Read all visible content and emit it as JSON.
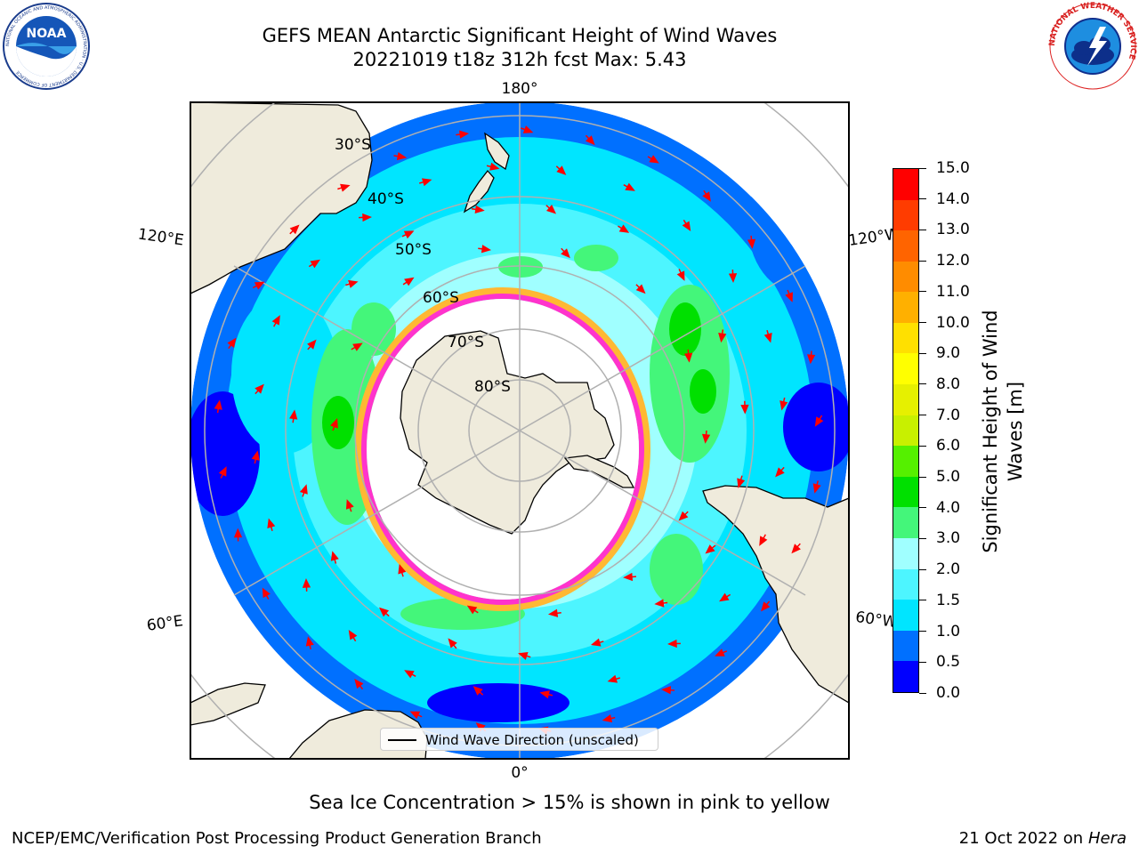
{
  "header": {
    "title_line1": "GEFS MEAN Antarctic Significant Height of Wind Waves",
    "title_line2": "20221019 t18z 312h fcst   Max: 5.43"
  },
  "logos": {
    "noaa_text": "NOAA",
    "noaa_ring_text": "NATIONAL OCEANIC AND ATMOSPHERIC ADMINISTRATION · U.S. DEPARTMENT OF COMMERCE",
    "nws_ring_text": "NATIONAL WEATHER SERVICE"
  },
  "map": {
    "longitude_labels": {
      "top": "180°",
      "bottom": "0°",
      "upper_left": "120°E",
      "lower_left": "60°E",
      "upper_right": "120°W",
      "lower_right": "60°W"
    },
    "latitude_labels": [
      "30°S",
      "40°S",
      "50°S",
      "60°S",
      "70°S",
      "80°S"
    ],
    "legend_label": "Wind Wave Direction (unscaled)",
    "colors": {
      "land": "#efebdc",
      "ice_free": "#ffffff",
      "ice_edge_pink": "#ff33cc",
      "ice_edge_orange": "#ffb833",
      "arrow": "#ff0000"
    }
  },
  "colorbar": {
    "title": "Significant Height of Wind Waves [m]",
    "title_line1": "Significant Height of Wind",
    "title_line2": "Waves [m]",
    "ticks": [
      "0.0",
      "0.5",
      "1.0",
      "1.5",
      "2.0",
      "3.0",
      "4.0",
      "5.0",
      "6.0",
      "7.0",
      "8.0",
      "9.0",
      "10.0",
      "11.0",
      "12.0",
      "13.0",
      "14.0",
      "15.0"
    ],
    "colors": [
      "#0000ff",
      "#0070ff",
      "#00e5ff",
      "#4df5ff",
      "#a0ffff",
      "#44f67a",
      "#00e000",
      "#55f000",
      "#c8f000",
      "#e6f000",
      "#ffff00",
      "#ffe000",
      "#ffb000",
      "#ff8c00",
      "#ff6400",
      "#ff3c00",
      "#ff0000"
    ]
  },
  "note": "Sea Ice Concentration > 15% is shown in pink to yellow",
  "footer": {
    "left": "NCEP/EMC/Verification Post Processing Product Generation Branch",
    "right_prefix": "21 Oct 2022 on ",
    "right_host": "Hera"
  }
}
